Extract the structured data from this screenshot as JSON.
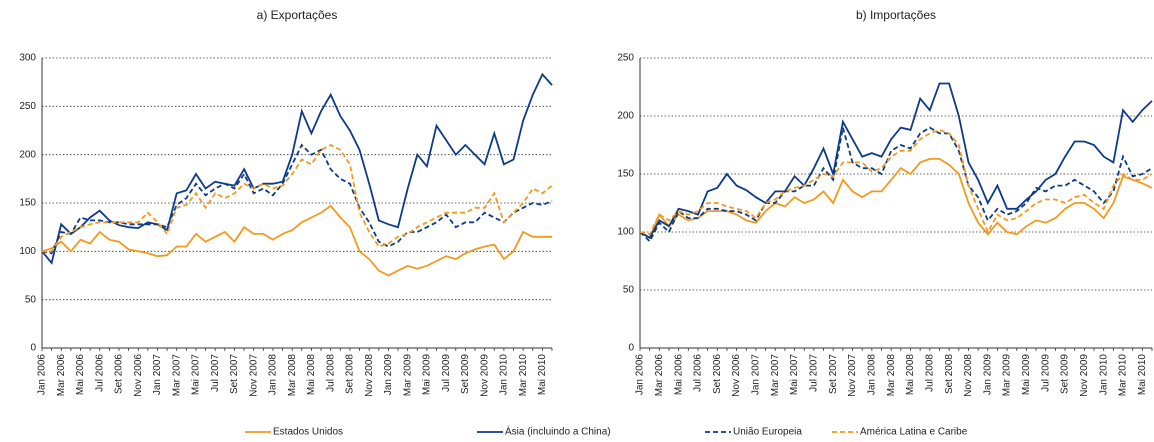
{
  "chart_data": [
    {
      "type": "line",
      "title": "a) Exportações",
      "categories": [
        "Jan 2006",
        null,
        "Mar 2006",
        null,
        "Mai 2006",
        null,
        "Jul 2006",
        null,
        "Set 2006",
        null,
        "Nov 2006",
        null,
        "Jan 2007",
        null,
        "Mar 2007",
        null,
        "Mai 2007",
        null,
        "Jul 2007",
        null,
        "Set 2007",
        null,
        "Nov 2007",
        null,
        "Jan 2008",
        null,
        "Mar 2008",
        null,
        "Mai 2008",
        null,
        "Jul 2008",
        null,
        "Set 2008",
        null,
        "Nov 2008",
        null,
        "Jan 2009",
        null,
        "Mar 2009",
        null,
        "Mai 2009",
        null,
        "Jul 2009",
        null,
        "Set 2009",
        null,
        "Nov 2009",
        null,
        "Jan 2010",
        null,
        "Mar 2010",
        null,
        "Mai 2010",
        null
      ],
      "ylim": [
        0,
        300
      ],
      "yticks": [
        0,
        50,
        100,
        150,
        200,
        250,
        300
      ],
      "grid": true,
      "series": [
        {
          "name": "Estados Unidos",
          "color": "#f39a1e",
          "dash": false,
          "values": [
            100,
            103,
            110,
            100,
            112,
            108,
            120,
            112,
            110,
            102,
            100,
            98,
            95,
            96,
            105,
            105,
            118,
            110,
            115,
            120,
            110,
            125,
            118,
            118,
            112,
            118,
            122,
            130,
            135,
            140,
            147,
            135,
            125,
            100,
            92,
            80,
            75,
            80,
            85,
            82,
            85,
            90,
            95,
            92,
            98,
            102,
            105,
            107,
            92,
            100,
            120,
            115,
            115,
            115
          ]
        },
        {
          "name": "Ásia (incluindo a China)",
          "color": "#0d3a8a",
          "dash": false,
          "values": [
            100,
            88,
            128,
            118,
            125,
            135,
            142,
            132,
            127,
            125,
            124,
            130,
            128,
            122,
            160,
            163,
            180,
            165,
            172,
            170,
            168,
            185,
            165,
            170,
            170,
            172,
            200,
            245,
            222,
            245,
            262,
            240,
            225,
            205,
            170,
            132,
            128,
            125,
            165,
            200,
            188,
            230,
            215,
            200,
            210,
            200,
            190,
            222,
            190,
            195,
            235,
            262,
            283,
            272
          ]
        },
        {
          "name": "União Europeia",
          "color": "#0d3a8a",
          "dash": true,
          "values": [
            100,
            98,
            120,
            118,
            135,
            132,
            132,
            130,
            130,
            128,
            128,
            128,
            128,
            125,
            148,
            155,
            170,
            158,
            165,
            170,
            165,
            180,
            160,
            165,
            158,
            170,
            190,
            210,
            200,
            205,
            185,
            175,
            170,
            145,
            130,
            110,
            105,
            110,
            120,
            120,
            125,
            130,
            138,
            125,
            130,
            130,
            140,
            135,
            130,
            140,
            145,
            150,
            148,
            152
          ]
        },
        {
          "name": "América Latina e Caribe",
          "color": "#f39a1e",
          "dash": true,
          "values": [
            100,
            100,
            115,
            120,
            125,
            128,
            130,
            130,
            130,
            130,
            130,
            140,
            130,
            118,
            145,
            148,
            160,
            145,
            160,
            155,
            160,
            170,
            165,
            170,
            165,
            168,
            180,
            195,
            190,
            205,
            210,
            205,
            190,
            140,
            120,
            105,
            108,
            115,
            118,
            125,
            130,
            135,
            140,
            140,
            140,
            145,
            145,
            160,
            130,
            140,
            150,
            165,
            160,
            168
          ]
        }
      ]
    },
    {
      "type": "line",
      "title": "b) Importações",
      "categories": [
        "Jan 2006",
        null,
        "Mar 2006",
        null,
        "Mai 2006",
        null,
        "Jul 2006",
        null,
        "Set 2006",
        null,
        "Nov 2006",
        null,
        "Jan 2007",
        null,
        "Mar 2007",
        null,
        "Mai 2007",
        null,
        "Jul 2007",
        null,
        "Set 2007",
        null,
        "Nov 2007",
        null,
        "Jan 2008",
        null,
        "Mar 2008",
        null,
        "Mai 2008",
        null,
        "Jul 2008",
        null,
        "Set 2008",
        null,
        "Nov 2008",
        null,
        "Jan 2009",
        null,
        "Mar 2009",
        null,
        "Mai 2009",
        null,
        "Jul 2009",
        null,
        "Set 2009",
        null,
        "Nov 2009",
        null,
        "Jan 2010",
        null,
        "Mar 2010",
        null,
        "Mai 2010",
        null
      ],
      "ylim": [
        0,
        250
      ],
      "yticks": [
        0,
        50,
        100,
        150,
        200,
        250
      ],
      "grid": true,
      "series": [
        {
          "color": "#f39a1e",
          "dash": false,
          "values": [
            100,
            95,
            115,
            105,
            115,
            110,
            112,
            118,
            118,
            118,
            115,
            110,
            108,
            118,
            125,
            122,
            130,
            125,
            128,
            135,
            125,
            145,
            135,
            130,
            135,
            135,
            145,
            155,
            150,
            160,
            163,
            163,
            158,
            150,
            125,
            108,
            98,
            108,
            100,
            98,
            105,
            110,
            108,
            112,
            120,
            125,
            125,
            120,
            112,
            125,
            148,
            145,
            142,
            138
          ]
        },
        {
          "color": "#0d3a8a",
          "dash": false,
          "values": [
            100,
            95,
            110,
            105,
            120,
            118,
            115,
            135,
            138,
            150,
            140,
            136,
            130,
            125,
            135,
            135,
            148,
            140,
            155,
            172,
            150,
            195,
            180,
            165,
            168,
            165,
            180,
            190,
            188,
            215,
            205,
            228,
            228,
            200,
            160,
            145,
            125,
            140,
            120,
            120,
            128,
            135,
            145,
            150,
            165,
            178,
            178,
            175,
            165,
            160,
            205,
            195,
            205,
            213
          ]
        },
        {
          "color": "#0d3a8a",
          "dash": true,
          "values": [
            100,
            92,
            108,
            100,
            118,
            112,
            112,
            120,
            120,
            118,
            118,
            115,
            110,
            125,
            125,
            135,
            135,
            140,
            140,
            155,
            145,
            190,
            160,
            155,
            155,
            150,
            170,
            175,
            172,
            185,
            190,
            185,
            185,
            170,
            140,
            130,
            110,
            120,
            115,
            118,
            125,
            138,
            135,
            140,
            140,
            145,
            140,
            135,
            125,
            135,
            165,
            148,
            150,
            155
          ]
        },
        {
          "color": "#f39a1e",
          "dash": true,
          "values": [
            100,
            98,
            115,
            110,
            118,
            115,
            118,
            125,
            125,
            122,
            120,
            118,
            112,
            125,
            128,
            135,
            138,
            140,
            145,
            150,
            148,
            160,
            160,
            160,
            152,
            155,
            165,
            170,
            170,
            180,
            185,
            188,
            185,
            175,
            140,
            120,
            100,
            115,
            110,
            112,
            118,
            125,
            128,
            128,
            125,
            130,
            132,
            125,
            120,
            140,
            150,
            145,
            145,
            150
          ]
        }
      ]
    }
  ]
}
